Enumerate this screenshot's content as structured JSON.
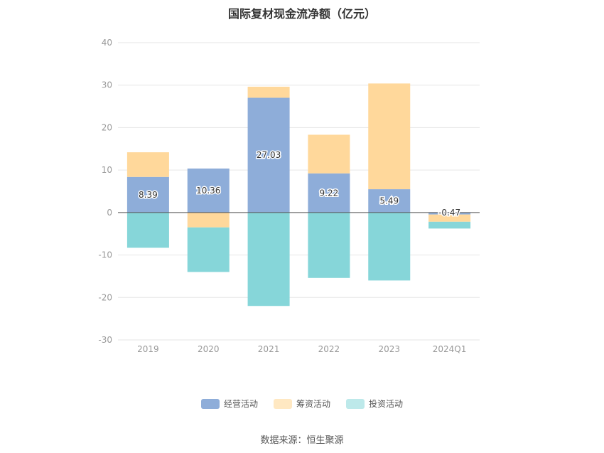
{
  "chart_data": {
    "type": "bar",
    "stacked": true,
    "title": "国际复材现金流净额（亿元）",
    "categories": [
      "2019",
      "2020",
      "2021",
      "2022",
      "2023",
      "2024Q1"
    ],
    "series": [
      {
        "name": "经营活动",
        "color": "#8EADD9",
        "values": [
          8.39,
          10.36,
          27.03,
          9.22,
          5.49,
          -0.47
        ]
      },
      {
        "name": "筹资活动",
        "color": "#FFD89B",
        "values": [
          5.8,
          -3.5,
          2.6,
          9.1,
          24.9,
          -1.7
        ]
      },
      {
        "name": "投资活动",
        "color": "#86D6D9",
        "values": [
          -8.3,
          -10.5,
          -22.0,
          -15.4,
          -16.0,
          -1.6
        ]
      }
    ],
    "data_labels": [
      "8.39",
      "10.36",
      "27.03",
      "9.22",
      "5.49",
      "-0.47"
    ],
    "ylim": [
      -30,
      40
    ],
    "yticks": [
      40,
      30,
      20,
      10,
      0,
      -10,
      -20,
      -30
    ],
    "grid": true,
    "legend_position": "bottom"
  },
  "legend": {
    "operating": "经营活动",
    "financing": "筹资活动",
    "investing": "投资活动"
  },
  "colors": {
    "operating": "#8EADD9",
    "financing": "#FFD89B",
    "investing": "#86D6D9",
    "financing_swatch": "#FFE8C2",
    "investing_swatch": "#BDE9EA"
  },
  "source": "数据来源：恒生聚源"
}
